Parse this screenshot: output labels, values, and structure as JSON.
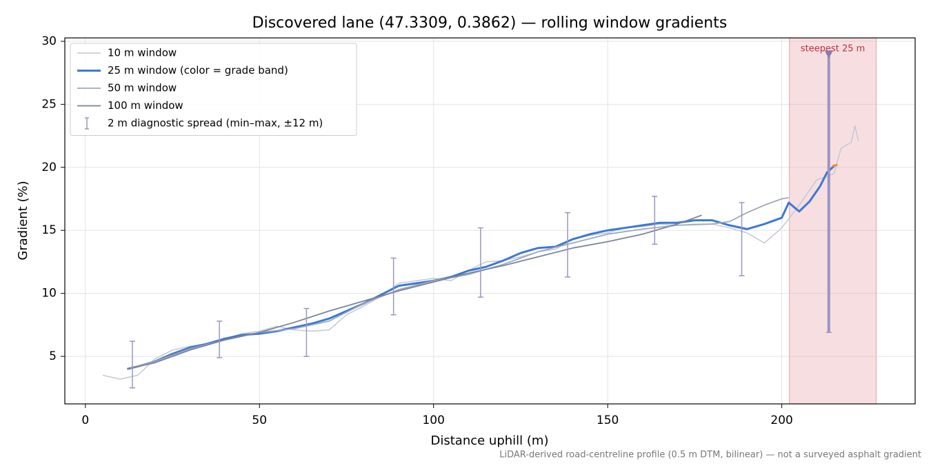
{
  "chart_data": {
    "type": "line",
    "title": "Discovered lane (47.3309, 0.3862) — rolling window gradients",
    "x_label": "Distance uphill (m)",
    "y_label": "Gradient (%)",
    "footnote": "LiDAR-derived road-centreline profile (0.5 m DTM, bilinear) — not a surveyed asphalt gradient",
    "xlim": [
      -5.9,
      238.3
    ],
    "ylim": [
      1.23,
      30.27
    ],
    "xticks": [
      0,
      50,
      100,
      150,
      200
    ],
    "yticks": [
      5,
      10,
      15,
      20,
      25,
      30
    ],
    "grid": true,
    "legend": "upper left",
    "series": [
      {
        "name": "10 m window",
        "color": "#c3c8d4",
        "width": 1.5,
        "x": [
          5,
          10,
          15,
          20,
          25,
          30,
          35,
          40,
          45,
          50,
          55,
          60,
          65,
          70,
          75,
          80,
          85,
          90,
          95,
          100,
          105,
          110,
          115,
          120,
          125,
          130,
          135,
          140,
          145,
          150,
          155,
          160,
          165,
          170,
          175,
          180,
          185,
          190,
          195,
          200,
          205,
          210,
          215,
          217,
          220,
          221,
          222
        ],
        "values": [
          3.5,
          3.2,
          3.5,
          4.8,
          5.5,
          5.8,
          6.0,
          6.4,
          6.8,
          7.0,
          7.4,
          7.1,
          7.0,
          7.1,
          8.3,
          9.0,
          9.8,
          10.8,
          11.0,
          11.2,
          11.0,
          11.8,
          12.5,
          12.6,
          12.9,
          13.3,
          13.5,
          14.3,
          14.6,
          14.8,
          15.2,
          15.3,
          15.5,
          15.4,
          15.5,
          15.5,
          15.2,
          14.8,
          14.0,
          15.2,
          17.0,
          19.0,
          19.5,
          21.5,
          22.0,
          23.3,
          22.1
        ]
      },
      {
        "name": "25 m window (color = grade band)",
        "color": "#3a78d8",
        "width": 3,
        "x": [
          12,
          15,
          20,
          25,
          30,
          35,
          40,
          45,
          50,
          55,
          60,
          65,
          70,
          75,
          80,
          85,
          90,
          95,
          100,
          105,
          110,
          115,
          120,
          125,
          130,
          135,
          140,
          145,
          150,
          155,
          160,
          165,
          170,
          175,
          180,
          185,
          190,
          195,
          200,
          202,
          205,
          208,
          211,
          213,
          215
        ],
        "values": [
          4.0,
          4.2,
          4.6,
          5.2,
          5.7,
          6.0,
          6.4,
          6.7,
          6.8,
          7.0,
          7.3,
          7.6,
          8.0,
          8.6,
          9.2,
          9.9,
          10.6,
          10.8,
          11.0,
          11.3,
          11.8,
          12.1,
          12.6,
          13.2,
          13.6,
          13.7,
          14.3,
          14.7,
          15.0,
          15.2,
          15.4,
          15.6,
          15.6,
          15.8,
          15.8,
          15.4,
          15.1,
          15.5,
          16.0,
          17.2,
          16.5,
          17.3,
          18.5,
          19.6,
          20.1
        ]
      },
      {
        "name": "50 m window",
        "color": "#a0a8b8",
        "width": 1.8,
        "x": [
          12,
          20,
          30,
          40,
          50,
          60,
          70,
          80,
          90,
          100,
          110,
          120,
          130,
          140,
          150,
          160,
          170,
          180,
          185,
          190,
          195,
          200,
          202
        ],
        "values": [
          4.0,
          4.6,
          5.6,
          6.3,
          6.9,
          7.2,
          7.8,
          9.2,
          10.3,
          11.0,
          11.5,
          12.3,
          13.3,
          14.0,
          14.7,
          15.1,
          15.4,
          15.5,
          15.7,
          16.4,
          17.0,
          17.5,
          17.6
        ]
      },
      {
        "name": "100 m window",
        "color": "#7a8499",
        "width": 1.8,
        "x": [
          12,
          20,
          30,
          40,
          50,
          60,
          70,
          80,
          90,
          100,
          110,
          120,
          130,
          140,
          150,
          160,
          170,
          177
        ],
        "values": [
          4.0,
          4.5,
          5.5,
          6.3,
          6.9,
          7.7,
          8.6,
          9.4,
          10.2,
          10.9,
          11.6,
          12.2,
          12.9,
          13.6,
          14.1,
          14.7,
          15.5,
          16.2
        ]
      },
      {
        "color": "#f08c1e",
        "width": 3,
        "x": [
          214.5,
          216
        ],
        "values": [
          20.1,
          20.2
        ]
      }
    ],
    "errorbars": {
      "name": "2 m diagnostic spread (min–max, ±12 m)",
      "color": "#9a96c0",
      "x": [
        13.5,
        38.5,
        63.5,
        88.5,
        113.5,
        138.5,
        163.5,
        188.5,
        213.5
      ],
      "low": [
        2.5,
        4.9,
        5.0,
        8.3,
        9.7,
        11.3,
        13.9,
        11.4,
        6.9
      ],
      "high": [
        6.2,
        7.8,
        8.8,
        12.8,
        15.2,
        16.4,
        17.7,
        17.2,
        29.0
      ]
    },
    "highlight": {
      "label": "steepest 25 m",
      "xmin": 202.2,
      "xmax": 227.1,
      "marker_x": 213.5,
      "marker_y": 29.0,
      "color": "#e8a0aa"
    }
  }
}
